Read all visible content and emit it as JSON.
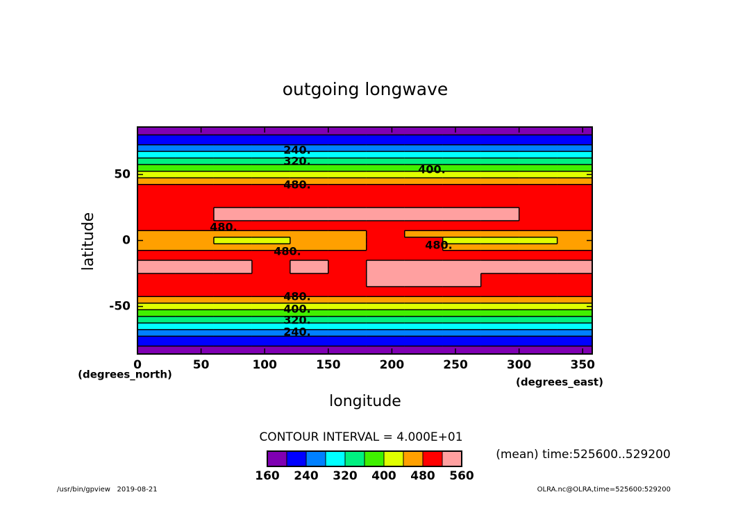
{
  "chart_data": {
    "type": "contour",
    "title": "outgoing longwave",
    "xlabel": "longitude",
    "ylabel": "latitude",
    "xunit": "(degrees_east)",
    "yunit": "(degrees_north)",
    "xlim": [
      0,
      357.5
    ],
    "ylim": [
      -86,
      86
    ],
    "xticks": [
      0,
      50,
      100,
      150,
      200,
      250,
      300,
      350
    ],
    "yticks": [
      -50,
      0,
      50
    ],
    "x": [
      15,
      45,
      75,
      105,
      135,
      165,
      195,
      225,
      255,
      285,
      315,
      345
    ],
    "y": [
      85,
      75,
      70,
      65,
      60,
      55,
      50,
      45,
      40,
      30,
      20,
      10,
      5,
      0,
      -5,
      -10,
      -20,
      -30,
      -40,
      -45,
      -50,
      -55,
      -60,
      -65,
      -70,
      -75,
      -85
    ],
    "z": [
      [
        180,
        180,
        180,
        180,
        180,
        180,
        180,
        180,
        180,
        180,
        180,
        180
      ],
      [
        220,
        220,
        220,
        220,
        220,
        220,
        220,
        220,
        220,
        220,
        220,
        220
      ],
      [
        250,
        250,
        250,
        250,
        250,
        250,
        250,
        250,
        250,
        250,
        250,
        250
      ],
      [
        290,
        290,
        290,
        290,
        290,
        290,
        290,
        290,
        290,
        290,
        290,
        290
      ],
      [
        330,
        330,
        330,
        330,
        330,
        330,
        330,
        330,
        330,
        330,
        330,
        330
      ],
      [
        370,
        370,
        370,
        370,
        370,
        370,
        370,
        370,
        370,
        370,
        370,
        370
      ],
      [
        410,
        410,
        410,
        410,
        410,
        410,
        410,
        410,
        410,
        410,
        410,
        410
      ],
      [
        450,
        450,
        450,
        450,
        450,
        450,
        450,
        450,
        450,
        450,
        450,
        450
      ],
      [
        500,
        500,
        500,
        500,
        500,
        500,
        500,
        500,
        500,
        500,
        500,
        500
      ],
      [
        500,
        500,
        500,
        500,
        500,
        500,
        500,
        500,
        500,
        500,
        500,
        500
      ],
      [
        500,
        500,
        530,
        530,
        530,
        530,
        530,
        530,
        530,
        530,
        500,
        500
      ],
      [
        500,
        500,
        500,
        500,
        500,
        500,
        500,
        500,
        500,
        500,
        500,
        500
      ],
      [
        470,
        470,
        450,
        470,
        460,
        470,
        490,
        470,
        450,
        450,
        470,
        470
      ],
      [
        450,
        470,
        420,
        410,
        460,
        470,
        490,
        480,
        420,
        410,
        420,
        460
      ],
      [
        470,
        470,
        460,
        470,
        460,
        460,
        490,
        480,
        470,
        470,
        470,
        470
      ],
      [
        500,
        500,
        500,
        500,
        500,
        500,
        500,
        500,
        500,
        500,
        500,
        500
      ],
      [
        530,
        530,
        530,
        500,
        530,
        500,
        530,
        530,
        530,
        530,
        530,
        530
      ],
      [
        500,
        500,
        500,
        500,
        500,
        500,
        530,
        530,
        530,
        500,
        500,
        500
      ],
      [
        500,
        500,
        500,
        500,
        500,
        500,
        500,
        500,
        500,
        500,
        500,
        500
      ],
      [
        450,
        450,
        450,
        450,
        450,
        450,
        450,
        450,
        450,
        450,
        450,
        450
      ],
      [
        410,
        410,
        410,
        410,
        410,
        410,
        410,
        410,
        410,
        410,
        410,
        410
      ],
      [
        370,
        370,
        370,
        370,
        370,
        370,
        370,
        370,
        370,
        370,
        370,
        370
      ],
      [
        330,
        330,
        330,
        330,
        330,
        330,
        330,
        330,
        330,
        330,
        330,
        330
      ],
      [
        290,
        290,
        290,
        290,
        290,
        290,
        290,
        290,
        290,
        290,
        290,
        290
      ],
      [
        250,
        250,
        250,
        250,
        250,
        250,
        250,
        250,
        250,
        250,
        250,
        250
      ],
      [
        220,
        220,
        220,
        220,
        220,
        220,
        220,
        220,
        220,
        220,
        220,
        220
      ],
      [
        180,
        180,
        180,
        180,
        180,
        180,
        180,
        180,
        180,
        180,
        180,
        180
      ]
    ],
    "levels": [
      160,
      200,
      240,
      280,
      320,
      360,
      400,
      440,
      480,
      520,
      560
    ],
    "colors": [
      "#7f00b2",
      "#0000ff",
      "#0080ff",
      "#00ffff",
      "#00f080",
      "#40f000",
      "#e0ff00",
      "#ffa000",
      "#ff0000",
      "#ffa0a0"
    ],
    "colorbar_ticks": [
      160,
      240,
      320,
      400,
      480,
      560
    ],
    "contour_labels": [
      "240.",
      "320.",
      "400.",
      "480.",
      "480.",
      "480.",
      "480.",
      "480.",
      "400.",
      "320.",
      "240."
    ],
    "interval_text": "CONTOUR INTERVAL = 4.000E+01",
    "time_text": "(mean) time:525600..529200",
    "footer_left": "/usr/bin/gpview   2019-08-21",
    "footer_right": "OLRA.nc@OLRA,time=525600:529200"
  }
}
